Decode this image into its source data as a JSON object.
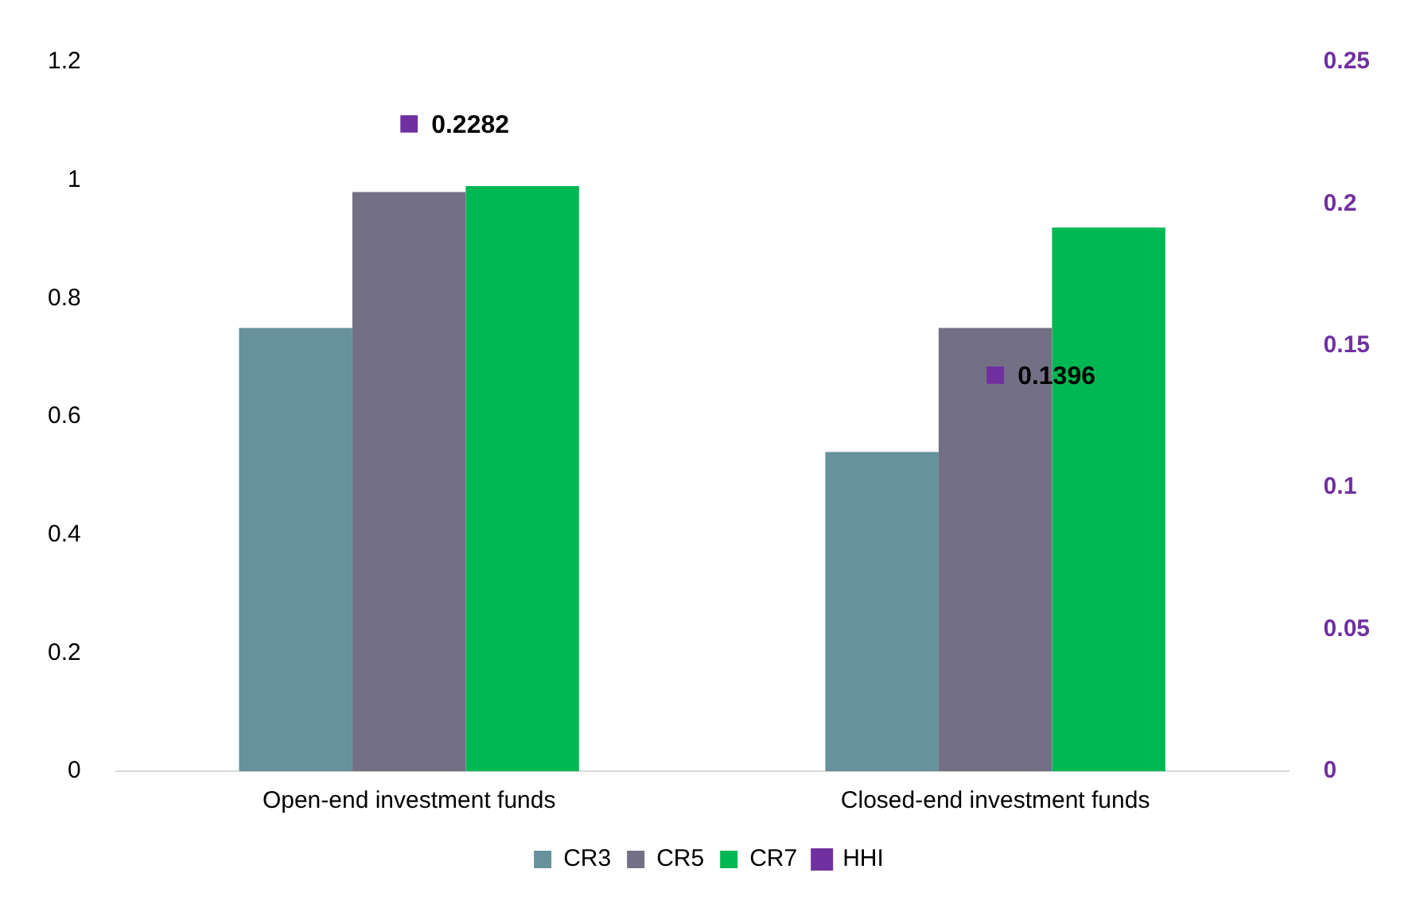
{
  "chart_data": {
    "type": "bar",
    "categories": [
      "Open-end investment funds",
      "Closed-end investment funds"
    ],
    "series": [
      {
        "name": "CR3",
        "color": "#67919b",
        "values": [
          0.75,
          0.54
        ]
      },
      {
        "name": "CR5",
        "color": "#737085",
        "values": [
          0.98,
          0.75
        ]
      },
      {
        "name": "CR7",
        "color": "#00b853",
        "values": [
          0.99,
          0.92
        ]
      },
      {
        "name": "HHI",
        "type": "scatter",
        "axis": "y2",
        "color": "#7030a0",
        "marker": "square",
        "x": [
          "Open-end investment funds",
          "Closed-end investment funds"
        ],
        "values": [
          0.2282,
          0.1396
        ],
        "value_labels": [
          "0.2282",
          "0.1396"
        ]
      }
    ],
    "ylim": [
      0,
      1.2
    ],
    "yticks": [
      0,
      0.2,
      0.4,
      0.6,
      0.8,
      1,
      1.2
    ],
    "y2lim": [
      0,
      0.25
    ],
    "y2ticks": [
      0,
      0.05,
      0.1,
      0.15,
      0.2,
      0.25
    ],
    "grid": false,
    "legend": "bottom"
  }
}
